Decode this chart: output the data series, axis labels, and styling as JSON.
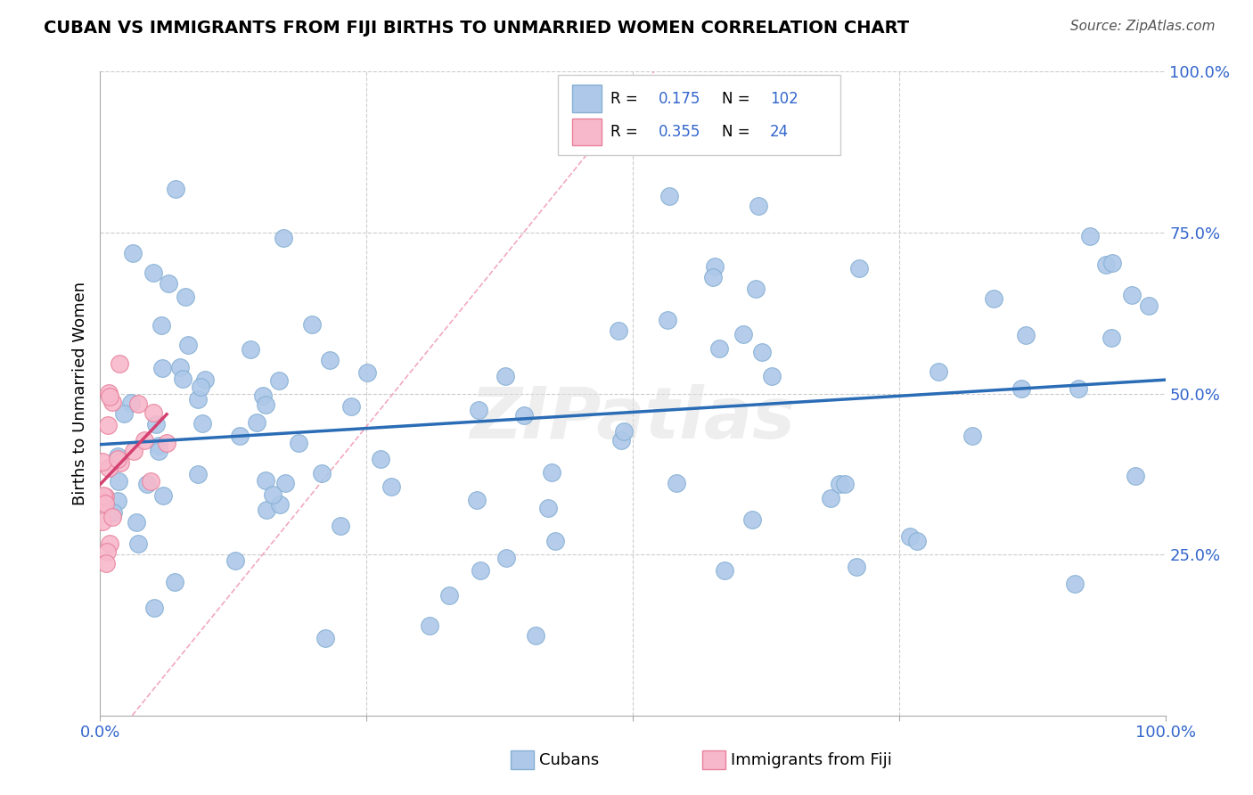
{
  "title": "CUBAN VS IMMIGRANTS FROM FIJI BIRTHS TO UNMARRIED WOMEN CORRELATION CHART",
  "source": "Source: ZipAtlas.com",
  "ylabel": "Births to Unmarried Women",
  "xlim": [
    0.0,
    1.0
  ],
  "ylim": [
    0.0,
    1.0
  ],
  "blue_R": 0.175,
  "blue_N": 102,
  "pink_R": 0.355,
  "pink_N": 24,
  "blue_color": "#adc8e8",
  "pink_color": "#f7b8cb",
  "blue_edge_color": "#85afd4",
  "pink_edge_color": "#e8809a",
  "blue_line_color": "#2a6cb5",
  "pink_line_color": "#d44070",
  "diagonal_color": "#f0a0b8",
  "watermark": "ZIPatlas",
  "grid_color": "#cccccc",
  "tick_color": "#3366cc",
  "title_fontsize": 14,
  "source_fontsize": 11,
  "tick_fontsize": 13,
  "ylabel_fontsize": 13
}
